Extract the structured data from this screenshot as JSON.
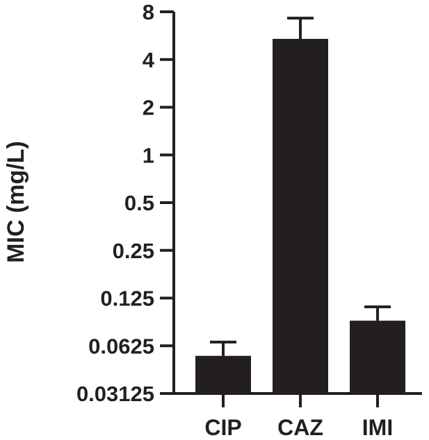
{
  "chart_data": {
    "type": "bar",
    "title": "",
    "xlabel": "",
    "ylabel": "MIC (mg/L)",
    "yscale": "log2",
    "ylim": [
      0.03125,
      8
    ],
    "yticks": [
      0.03125,
      0.0625,
      0.125,
      0.25,
      0.5,
      1,
      2,
      4,
      8
    ],
    "ytick_labels": [
      "0.03125",
      "0.0625",
      "0.125",
      "0.25",
      "0.5",
      "1",
      "2",
      "4",
      "8"
    ],
    "categories": [
      "CIP",
      "CAZ",
      "IMI"
    ],
    "series": [
      {
        "values": [
          0.054,
          5.4,
          0.09
        ],
        "error_upper": [
          0.066,
          7.3,
          0.11
        ]
      }
    ],
    "bar_color": "#231f20",
    "grid": false,
    "legend": "none"
  }
}
